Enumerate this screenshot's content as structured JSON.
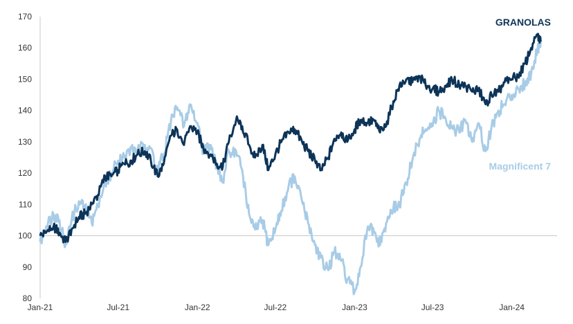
{
  "chart_data": {
    "type": "line",
    "title": "",
    "xlabel": "",
    "ylabel": "",
    "ylim": [
      80,
      170
    ],
    "yticks": [
      80,
      90,
      100,
      110,
      120,
      130,
      140,
      150,
      160,
      170
    ],
    "xticks": [
      {
        "label": "Jan-21",
        "date": "2021-01-01"
      },
      {
        "label": "Jul-21",
        "date": "2021-07-01"
      },
      {
        "label": "Jan-22",
        "date": "2022-01-01"
      },
      {
        "label": "Jul-22",
        "date": "2022-07-01"
      },
      {
        "label": "Jan-23",
        "date": "2023-01-01"
      },
      {
        "label": "Jul-23",
        "date": "2023-07-01"
      },
      {
        "label": "Jan-24",
        "date": "2024-01-01"
      }
    ],
    "xlim": [
      "2021-01-01",
      "2024-04-15"
    ],
    "grid": false,
    "series": [
      {
        "name": "GRANOLAS",
        "color": "#0d3458",
        "points": [
          [
            "2021-01-01",
            100
          ],
          [
            "2021-01-15",
            101
          ],
          [
            "2021-02-01",
            103
          ],
          [
            "2021-02-15",
            101
          ],
          [
            "2021-03-01",
            98
          ],
          [
            "2021-03-15",
            102
          ],
          [
            "2021-04-01",
            106
          ],
          [
            "2021-04-15",
            107
          ],
          [
            "2021-05-01",
            110
          ],
          [
            "2021-05-15",
            113
          ],
          [
            "2021-06-01",
            119
          ],
          [
            "2021-06-15",
            119
          ],
          [
            "2021-07-01",
            121
          ],
          [
            "2021-07-15",
            123
          ],
          [
            "2021-08-01",
            124
          ],
          [
            "2021-08-15",
            126
          ],
          [
            "2021-09-01",
            127
          ],
          [
            "2021-09-15",
            124
          ],
          [
            "2021-10-01",
            119
          ],
          [
            "2021-10-15",
            123
          ],
          [
            "2021-11-01",
            132
          ],
          [
            "2021-11-15",
            134
          ],
          [
            "2021-12-01",
            129
          ],
          [
            "2021-12-15",
            135
          ],
          [
            "2022-01-01",
            133
          ],
          [
            "2022-01-15",
            128
          ],
          [
            "2022-02-01",
            126
          ],
          [
            "2022-02-15",
            123
          ],
          [
            "2022-03-01",
            122
          ],
          [
            "2022-03-15",
            130
          ],
          [
            "2022-04-01",
            137
          ],
          [
            "2022-04-15",
            135
          ],
          [
            "2022-05-01",
            129
          ],
          [
            "2022-05-15",
            125
          ],
          [
            "2022-06-01",
            129
          ],
          [
            "2022-06-15",
            121
          ],
          [
            "2022-07-01",
            126
          ],
          [
            "2022-07-15",
            130
          ],
          [
            "2022-08-01",
            133
          ],
          [
            "2022-08-15",
            134
          ],
          [
            "2022-09-01",
            130
          ],
          [
            "2022-09-15",
            127
          ],
          [
            "2022-10-01",
            124
          ],
          [
            "2022-10-15",
            121
          ],
          [
            "2022-11-01",
            125
          ],
          [
            "2022-11-15",
            131
          ],
          [
            "2022-12-01",
            133
          ],
          [
            "2022-12-15",
            130
          ],
          [
            "2023-01-01",
            134
          ],
          [
            "2023-01-15",
            137
          ],
          [
            "2023-02-01",
            136
          ],
          [
            "2023-02-15",
            137
          ],
          [
            "2023-03-01",
            133
          ],
          [
            "2023-03-15",
            135
          ],
          [
            "2023-04-01",
            143
          ],
          [
            "2023-04-15",
            148
          ],
          [
            "2023-05-01",
            150
          ],
          [
            "2023-05-15",
            149
          ],
          [
            "2023-06-01",
            151
          ],
          [
            "2023-06-15",
            148
          ],
          [
            "2023-07-01",
            147
          ],
          [
            "2023-07-15",
            146
          ],
          [
            "2023-08-01",
            148
          ],
          [
            "2023-08-15",
            150
          ],
          [
            "2023-09-01",
            148
          ],
          [
            "2023-09-15",
            148
          ],
          [
            "2023-10-01",
            146
          ],
          [
            "2023-10-15",
            147
          ],
          [
            "2023-11-01",
            142
          ],
          [
            "2023-11-15",
            145
          ],
          [
            "2023-12-01",
            146
          ],
          [
            "2023-12-15",
            149
          ],
          [
            "2024-01-01",
            150
          ],
          [
            "2024-01-15",
            151
          ],
          [
            "2024-02-01",
            155
          ],
          [
            "2024-02-15",
            160
          ],
          [
            "2024-03-01",
            164
          ],
          [
            "2024-03-08",
            162
          ]
        ]
      },
      {
        "name": "Magnificent 7",
        "color": "#a8cce6",
        "points": [
          [
            "2021-01-01",
            98
          ],
          [
            "2021-01-15",
            103
          ],
          [
            "2021-02-01",
            107
          ],
          [
            "2021-02-15",
            105
          ],
          [
            "2021-03-01",
            97
          ],
          [
            "2021-03-15",
            105
          ],
          [
            "2021-04-01",
            111
          ],
          [
            "2021-04-15",
            109
          ],
          [
            "2021-05-01",
            104
          ],
          [
            "2021-05-15",
            110
          ],
          [
            "2021-06-01",
            117
          ],
          [
            "2021-06-15",
            120
          ],
          [
            "2021-07-01",
            124
          ],
          [
            "2021-07-15",
            125
          ],
          [
            "2021-08-01",
            128
          ],
          [
            "2021-08-15",
            127
          ],
          [
            "2021-09-01",
            129
          ],
          [
            "2021-09-15",
            128
          ],
          [
            "2021-10-01",
            121
          ],
          [
            "2021-10-15",
            126
          ],
          [
            "2021-11-01",
            137
          ],
          [
            "2021-11-15",
            141
          ],
          [
            "2021-12-01",
            135
          ],
          [
            "2021-12-15",
            142
          ],
          [
            "2022-01-01",
            136
          ],
          [
            "2022-01-15",
            127
          ],
          [
            "2022-02-01",
            129
          ],
          [
            "2022-02-15",
            122
          ],
          [
            "2022-03-01",
            117
          ],
          [
            "2022-03-15",
            127
          ],
          [
            "2022-04-01",
            127
          ],
          [
            "2022-04-15",
            121
          ],
          [
            "2022-05-01",
            107
          ],
          [
            "2022-05-15",
            102
          ],
          [
            "2022-06-01",
            105
          ],
          [
            "2022-06-15",
            97
          ],
          [
            "2022-07-01",
            102
          ],
          [
            "2022-07-15",
            108
          ],
          [
            "2022-08-01",
            116
          ],
          [
            "2022-08-15",
            119
          ],
          [
            "2022-09-01",
            111
          ],
          [
            "2022-09-15",
            104
          ],
          [
            "2022-10-01",
            97
          ],
          [
            "2022-10-15",
            93
          ],
          [
            "2022-11-01",
            89
          ],
          [
            "2022-11-15",
            95
          ],
          [
            "2022-12-01",
            92
          ],
          [
            "2022-12-15",
            86
          ],
          [
            "2023-01-01",
            82
          ],
          [
            "2023-01-15",
            90
          ],
          [
            "2023-02-01",
            103
          ],
          [
            "2023-02-15",
            101
          ],
          [
            "2023-03-01",
            97
          ],
          [
            "2023-03-15",
            104
          ],
          [
            "2023-04-01",
            109
          ],
          [
            "2023-04-15",
            110
          ],
          [
            "2023-05-01",
            117
          ],
          [
            "2023-05-15",
            124
          ],
          [
            "2023-06-01",
            131
          ],
          [
            "2023-06-15",
            134
          ],
          [
            "2023-07-01",
            135
          ],
          [
            "2023-07-15",
            140
          ],
          [
            "2023-08-01",
            137
          ],
          [
            "2023-08-15",
            135
          ],
          [
            "2023-09-01",
            133
          ],
          [
            "2023-09-15",
            137
          ],
          [
            "2023-10-01",
            130
          ],
          [
            "2023-10-15",
            136
          ],
          [
            "2023-11-01",
            127
          ],
          [
            "2023-11-15",
            135
          ],
          [
            "2023-12-01",
            140
          ],
          [
            "2023-12-15",
            142
          ],
          [
            "2024-01-01",
            145
          ],
          [
            "2024-01-15",
            147
          ],
          [
            "2024-02-01",
            149
          ],
          [
            "2024-02-15",
            152
          ],
          [
            "2024-03-01",
            160
          ],
          [
            "2024-03-08",
            162
          ]
        ]
      }
    ],
    "annotations": [
      {
        "text": "GRANOLAS",
        "series": 0,
        "anchor": "above-end"
      },
      {
        "text": "Magnificent 7",
        "series": 1,
        "anchor": "below-end"
      }
    ]
  }
}
